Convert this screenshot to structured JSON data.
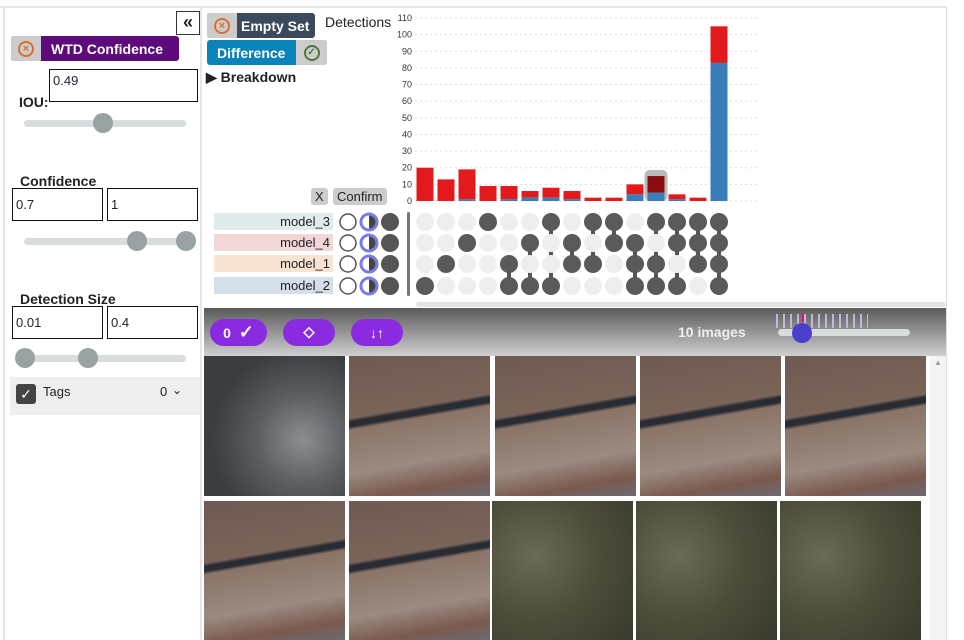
{
  "sidebar": {
    "collapse_icon": "double-chevron-left-icon",
    "filter_label": "WTD Confidence",
    "iou_label": "IOU:",
    "iou_value": "0.49",
    "iou_slider": 0.49,
    "confidence_label": "Confidence",
    "confidence_min": "0.7",
    "confidence_max": "1",
    "size_label": "Detection Size",
    "size_min": "0.01",
    "size_max": "0.4",
    "tags_label": "Tags",
    "tags_count": "0",
    "tags_checked": true
  },
  "controls": {
    "empty_set": "Empty Set",
    "difference": "Difference",
    "breakdown": "Breakdown",
    "x_label": "X",
    "confirm_label": "Confirm"
  },
  "models": [
    "model_3",
    "model_4",
    "model_1",
    "model_2"
  ],
  "model_colors": [
    "#e0eceb",
    "#f2d7d9",
    "#f9e4d3",
    "#d5dfe9"
  ],
  "chart_data": {
    "type": "bar",
    "ylabel": "Detections",
    "ylim": [
      0,
      110
    ],
    "yticks": [
      0,
      10,
      20,
      30,
      40,
      50,
      60,
      70,
      80,
      90,
      100,
      110
    ],
    "grid": true,
    "stacked_colors": {
      "red": "#e31a1c",
      "blue": "#3a7db8",
      "selected": "#8b0e0e"
    },
    "totals": [
      20,
      13,
      19,
      9,
      9,
      6,
      8,
      6,
      2,
      2,
      10,
      15,
      4,
      2,
      105
    ],
    "blue": [
      0,
      0,
      1,
      0,
      1,
      2,
      2,
      1,
      0,
      0,
      4,
      5,
      1,
      0,
      83
    ],
    "selected_index": 11,
    "sets": [
      [
        "model_2"
      ],
      [
        "model_1"
      ],
      [
        "model_4"
      ],
      [
        "model_3"
      ],
      [
        "model_1",
        "model_2"
      ],
      [
        "model_4",
        "model_2"
      ],
      [
        "model_3",
        "model_2"
      ],
      [
        "model_4",
        "model_1"
      ],
      [
        "model_3",
        "model_1"
      ],
      [
        "model_3",
        "model_4"
      ],
      [
        "model_4",
        "model_1",
        "model_2"
      ],
      [
        "model_3",
        "model_1",
        "model_2"
      ],
      [
        "model_3",
        "model_4",
        "model_2"
      ],
      [
        "model_3",
        "model_4",
        "model_1"
      ],
      [
        "model_3",
        "model_4",
        "model_1",
        "model_2"
      ]
    ]
  },
  "toolbar": {
    "confirm_count": "0",
    "image_count": "10 images"
  },
  "images": [
    "park",
    "desert",
    "desert",
    "desert",
    "desert",
    "desert",
    "desert",
    "town",
    "town",
    "town"
  ]
}
